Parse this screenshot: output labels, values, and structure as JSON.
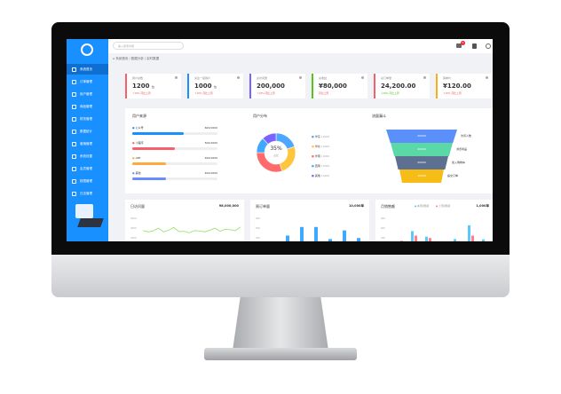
{
  "sidebar": {
    "items": [
      {
        "label": "系统首页",
        "icon": "home-icon"
      },
      {
        "label": "订单管理",
        "icon": "file-icon"
      },
      {
        "label": "用户管理",
        "icon": "user-icon"
      },
      {
        "label": "商品管理",
        "icon": "box-icon"
      },
      {
        "label": "财务管理",
        "icon": "wallet-icon"
      },
      {
        "label": "数据统计",
        "icon": "chart-icon"
      },
      {
        "label": "营销管理",
        "icon": "badge-icon"
      },
      {
        "label": "系统设置",
        "icon": "gear-icon"
      },
      {
        "label": "会员管理",
        "icon": "member-icon"
      },
      {
        "label": "权限管理",
        "icon": "lock-icon"
      },
      {
        "label": "日志管理",
        "icon": "monitor-icon"
      }
    ]
  },
  "header": {
    "search_placeholder": "输入搜索内容",
    "notification_count": "6"
  },
  "breadcrumb": [
    "系统首页",
    "数据分析",
    "实时数据"
  ],
  "cards": [
    {
      "title": "用户总数",
      "value": "1200",
      "unit": "位",
      "change": "↑10% 同比上周",
      "color": "#f5606a"
    },
    {
      "title": "关注一度用户",
      "value": "1000",
      "unit": "位",
      "change": "↑10% 同比上周",
      "color": "#1890ff"
    },
    {
      "title": "总访问量",
      "value": "200,000",
      "unit": "",
      "change": "↑10% 同比上周",
      "color": "#7b61ff"
    },
    {
      "title": "总收益",
      "value": "¥80,000",
      "unit": "",
      "change": "同比上周",
      "color": "#52c41a"
    },
    {
      "title": "总订单量",
      "value": "24,200.00",
      "unit": "",
      "change": "↓20% 同比上周",
      "color": "#f5606a"
    },
    {
      "title": "客单价",
      "value": "¥120.00",
      "unit": "",
      "change": "↑10% 同比上周",
      "color": "#faad14"
    }
  ],
  "progress": {
    "title": "用户来源",
    "items": [
      {
        "label": "公众号",
        "value": "600/1000",
        "pct": 60,
        "color": "#1890ff"
      },
      {
        "label": "小程序",
        "value": "500/1000",
        "pct": 50,
        "color": "#f5606a"
      },
      {
        "label": "APP",
        "value": "400/1000",
        "pct": 40,
        "color": "#ffa940"
      },
      {
        "label": "其他",
        "value": "400/1000",
        "pct": 40,
        "color": "#6b8cff"
      }
    ]
  },
  "donut": {
    "title": "用户分布",
    "center_value": "35%",
    "center_label": "占比",
    "legend": [
      {
        "label": "华东",
        "value": "10000",
        "color": "#4da6ff"
      },
      {
        "label": "华北",
        "value": "10000",
        "color": "#ffc53d"
      },
      {
        "label": "华南",
        "value": "10000",
        "color": "#ff6b6b"
      },
      {
        "label": "西南",
        "value": "10000",
        "color": "#40a9ff"
      },
      {
        "label": "其他",
        "value": "10000",
        "color": "#7b61ff"
      }
    ]
  },
  "funnel": {
    "title": "流量漏斗",
    "stages": [
      {
        "value": "20000",
        "label": "访问人数",
        "color": "#5b8ff9"
      },
      {
        "value": "20000",
        "label": "浏览商品",
        "color": "#5ad8a6"
      },
      {
        "value": "20000",
        "label": "加入购物车",
        "color": "#5d7092"
      },
      {
        "value": "10000",
        "label": "提交订单",
        "color": "#f6bd16"
      }
    ]
  },
  "chart_data": [
    {
      "type": "line",
      "title": "日访问量",
      "total": "¥8,000,000",
      "y_ticks": [
        "5000",
        "4000",
        "3000"
      ],
      "values": [
        3300,
        3100,
        3250,
        3700,
        3100,
        3350,
        3800,
        3150,
        3200,
        2950,
        3300,
        3250,
        3100,
        3350,
        3700,
        3200,
        3500,
        3450,
        3300,
        3900
      ],
      "color": "#95de64"
    },
    {
      "type": "bar",
      "title": "周订单量",
      "total": "10,000单",
      "y_ticks": [
        "900",
        "600",
        "300"
      ],
      "values": [
        250,
        450,
        700,
        700,
        350,
        600,
        380
      ],
      "color": "#40a9ff"
    },
    {
      "type": "bar",
      "title": "月销售额",
      "total": "1,000单",
      "legend": [
        "本月销售额",
        "上月销售额"
      ],
      "y_ticks": [
        "900",
        "600",
        "300"
      ],
      "series": [
        {
          "name": "本月销售额",
          "values": [
            0,
            580,
            420,
            0,
            350,
            750,
            340
          ],
          "color": "#5ac8fa"
        },
        {
          "name": "上月销售额",
          "values": [
            300,
            450,
            380,
            220,
            290,
            450,
            80
          ],
          "color": "#ff7a8a"
        }
      ]
    }
  ]
}
